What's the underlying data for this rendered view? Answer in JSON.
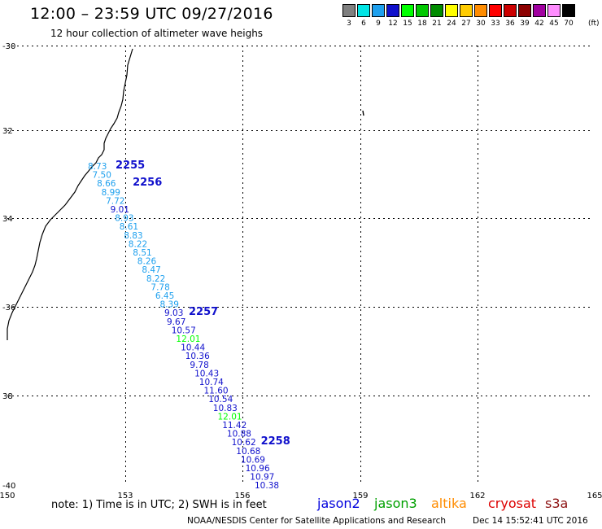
{
  "header": {
    "title": "12:00 – 23:59 UTC 09/27/2016",
    "subtitle": "12 hour collection of altimeter wave heighs"
  },
  "legend": {
    "unit": "(ft)",
    "labels": [
      "3",
      "6",
      "9",
      "12",
      "15",
      "18",
      "21",
      "24",
      "27",
      "30",
      "33",
      "36",
      "39",
      "42",
      "45",
      "70"
    ],
    "colors": [
      "#808080",
      "#00e5e5",
      "#1ea0ee",
      "#1010cc",
      "#00ff00",
      "#00c800",
      "#008c00",
      "#ffff00",
      "#ffcc00",
      "#ff8c00",
      "#ff0000",
      "#cc0000",
      "#8c0000",
      "#a000a0",
      "#ff8cff",
      "#000000"
    ]
  },
  "axes": {
    "lat_ticks": [
      "-30",
      "32",
      "34",
      "-36",
      "38",
      "-40"
    ],
    "lon_ticks": [
      "150",
      "153",
      "156",
      "159",
      "162",
      "165"
    ]
  },
  "track": {
    "passes": [
      "2255",
      "2256",
      "2257",
      "2258"
    ],
    "points": [
      {
        "v": "8.73",
        "c": "#1ea0ee"
      },
      {
        "v": "7.50",
        "c": "#1ea0ee"
      },
      {
        "v": "8.66",
        "c": "#1ea0ee"
      },
      {
        "v": "8.99",
        "c": "#1ea0ee"
      },
      {
        "v": "7.72",
        "c": "#1ea0ee"
      },
      {
        "v": "9.01",
        "c": "#1010cc"
      },
      {
        "v": "8.93",
        "c": "#1ea0ee"
      },
      {
        "v": "8.61",
        "c": "#1ea0ee"
      },
      {
        "v": "8.83",
        "c": "#1ea0ee"
      },
      {
        "v": "8.22",
        "c": "#1ea0ee"
      },
      {
        "v": "8.51",
        "c": "#1ea0ee"
      },
      {
        "v": "8.26",
        "c": "#1ea0ee"
      },
      {
        "v": "8.47",
        "c": "#1ea0ee"
      },
      {
        "v": "8.22",
        "c": "#1ea0ee"
      },
      {
        "v": "7.78",
        "c": "#1ea0ee"
      },
      {
        "v": "6.45",
        "c": "#1ea0ee"
      },
      {
        "v": "8.39",
        "c": "#1ea0ee"
      },
      {
        "v": "9.03",
        "c": "#1010cc"
      },
      {
        "v": "9.67",
        "c": "#1010cc"
      },
      {
        "v": "10.57",
        "c": "#1010cc"
      },
      {
        "v": "12.01",
        "c": "#00ff00"
      },
      {
        "v": "10.44",
        "c": "#1010cc"
      },
      {
        "v": "10.36",
        "c": "#1010cc"
      },
      {
        "v": "9.78",
        "c": "#1010cc"
      },
      {
        "v": "10.43",
        "c": "#1010cc"
      },
      {
        "v": "10.74",
        "c": "#1010cc"
      },
      {
        "v": "11.60",
        "c": "#1010cc"
      },
      {
        "v": "10.54",
        "c": "#1010cc"
      },
      {
        "v": "10.83",
        "c": "#1010cc"
      },
      {
        "v": "12.01",
        "c": "#00ff00"
      },
      {
        "v": "11.42",
        "c": "#1010cc"
      },
      {
        "v": "10.88",
        "c": "#1010cc"
      },
      {
        "v": "10.62",
        "c": "#1010cc"
      },
      {
        "v": "10.68",
        "c": "#1010cc"
      },
      {
        "v": "10.69",
        "c": "#1010cc"
      },
      {
        "v": "10.96",
        "c": "#1010cc"
      },
      {
        "v": "10.97",
        "c": "#1010cc"
      },
      {
        "v": "10.38",
        "c": "#1010cc"
      }
    ]
  },
  "footer": {
    "note": "note: 1) Time is in UTC; 2) SWH is in feet",
    "satellites": [
      {
        "name": "jason2",
        "color": "#0000dd"
      },
      {
        "name": "jason3",
        "color": "#00a000"
      },
      {
        "name": "altika",
        "color": "#ff8c00"
      },
      {
        "name": "cryosat",
        "color": "#dd0000"
      },
      {
        "name": "s3a",
        "color": "#8c1010"
      }
    ],
    "credit": "NOAA/NESDIS Center for Satellite Applications and Research",
    "timestamp": "Dec 14 15:52:41 UTC 2016"
  }
}
